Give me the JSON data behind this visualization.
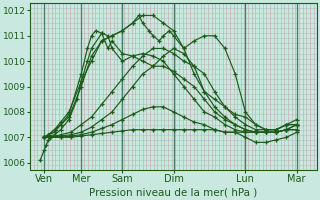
{
  "xlabel": "Pression niveau de la mer( hPa )",
  "bg_color": "#c8e8e0",
  "line_color": "#1a5c1a",
  "grid_color_v": "#b8c8c0",
  "grid_color_v2": "#c0a8a8",
  "grid_color_h": "#a8c8b8",
  "ylim": [
    1005.7,
    1012.3
  ],
  "xlim": [
    0,
    14
  ],
  "yticks": [
    1006,
    1007,
    1008,
    1009,
    1010,
    1011,
    1012
  ],
  "xtick_positions": [
    0.7,
    2.5,
    4.5,
    7.0,
    10.5,
    13.0
  ],
  "xtick_labels": [
    "Ven",
    "Mer",
    "Sam",
    "Dim",
    "Lun",
    "Mar"
  ],
  "day_vlines": [
    0.7,
    2.5,
    4.5,
    7.0,
    10.5,
    13.0
  ],
  "lines": [
    {
      "x": [
        0.7,
        0.9,
        1.2,
        1.5,
        1.9,
        2.5,
        3.0,
        3.5,
        4.0,
        4.5,
        5.0,
        5.3,
        5.5,
        5.8,
        6.0,
        6.3,
        6.5,
        6.8,
        7.0,
        7.5,
        8.0,
        8.5,
        9.0,
        9.5,
        10.0,
        10.5,
        11.0,
        11.5,
        12.0,
        12.5,
        13.0
      ],
      "y": [
        1007.0,
        1007.1,
        1007.3,
        1007.6,
        1008.0,
        1009.2,
        1010.0,
        1010.8,
        1011.0,
        1011.2,
        1011.5,
        1011.8,
        1011.5,
        1011.2,
        1011.0,
        1010.8,
        1011.0,
        1011.2,
        1011.0,
        1010.5,
        1010.8,
        1011.0,
        1011.0,
        1010.5,
        1009.5,
        1008.0,
        1007.5,
        1007.3,
        1007.3,
        1007.5,
        1007.5
      ]
    },
    {
      "x": [
        0.7,
        0.9,
        1.2,
        1.5,
        1.9,
        2.5,
        3.0,
        3.5,
        4.0,
        4.5,
        5.0,
        5.5,
        6.0,
        6.5,
        7.0,
        7.5,
        8.0,
        8.5,
        9.0,
        9.5,
        10.0,
        10.5,
        11.0,
        11.5,
        12.0,
        12.5,
        13.0
      ],
      "y": [
        1007.0,
        1007.1,
        1007.3,
        1007.5,
        1007.8,
        1009.0,
        1010.2,
        1010.8,
        1011.0,
        1011.2,
        1011.5,
        1011.8,
        1011.8,
        1011.5,
        1011.2,
        1010.5,
        1009.5,
        1008.8,
        1008.5,
        1008.2,
        1007.9,
        1007.8,
        1007.5,
        1007.3,
        1007.3,
        1007.5,
        1007.5
      ]
    },
    {
      "x": [
        0.7,
        0.9,
        1.2,
        1.5,
        1.9,
        2.5,
        2.8,
        3.0,
        3.2,
        3.5,
        3.8,
        4.0,
        4.5,
        5.0,
        5.5,
        6.0,
        6.5,
        7.0,
        7.5,
        8.0,
        8.5,
        9.0,
        9.5,
        10.0,
        10.5,
        11.0,
        11.5,
        12.0,
        12.5,
        13.0
      ],
      "y": [
        1007.0,
        1007.1,
        1007.2,
        1007.5,
        1007.9,
        1009.5,
        1010.5,
        1011.0,
        1011.2,
        1011.1,
        1010.5,
        1010.8,
        1010.3,
        1010.2,
        1010.0,
        1009.8,
        1010.2,
        1010.5,
        1010.3,
        1009.8,
        1008.8,
        1008.2,
        1007.8,
        1007.5,
        1007.3,
        1007.2,
        1007.2,
        1007.2,
        1007.3,
        1007.3
      ]
    },
    {
      "x": [
        0.7,
        0.9,
        1.2,
        1.5,
        1.9,
        2.3,
        2.5,
        2.8,
        3.0,
        3.5,
        3.8,
        4.0,
        4.5,
        5.0,
        5.5,
        6.0,
        6.5,
        7.0,
        7.5,
        8.0,
        8.5,
        9.0,
        9.5,
        10.0,
        10.5,
        11.0,
        11.5,
        12.0,
        12.5,
        13.0
      ],
      "y": [
        1007.0,
        1007.05,
        1007.1,
        1007.3,
        1007.7,
        1008.5,
        1009.2,
        1010.0,
        1010.5,
        1011.1,
        1011.0,
        1010.5,
        1010.0,
        1010.2,
        1010.3,
        1010.2,
        1010.0,
        1009.5,
        1009.0,
        1008.5,
        1008.0,
        1007.8,
        1007.5,
        1007.3,
        1007.2,
        1007.2,
        1007.2,
        1007.2,
        1007.3,
        1007.3
      ]
    },
    {
      "x": [
        0.7,
        1.0,
        1.5,
        2.0,
        2.5,
        3.0,
        3.5,
        4.0,
        4.5,
        5.0,
        5.5,
        6.0,
        6.5,
        7.0,
        7.5,
        8.0,
        8.5,
        9.0,
        9.5,
        10.0,
        10.5,
        11.0,
        11.5,
        12.0,
        12.5,
        13.0
      ],
      "y": [
        1007.0,
        1007.0,
        1007.1,
        1007.2,
        1007.5,
        1007.8,
        1008.3,
        1008.8,
        1009.3,
        1009.8,
        1010.2,
        1010.5,
        1010.5,
        1010.3,
        1010.0,
        1009.8,
        1009.5,
        1008.8,
        1008.2,
        1007.8,
        1007.5,
        1007.3,
        1007.3,
        1007.3,
        1007.5,
        1007.7
      ]
    },
    {
      "x": [
        0.7,
        1.0,
        1.5,
        2.0,
        2.5,
        3.0,
        3.5,
        4.0,
        4.5,
        5.0,
        5.5,
        6.0,
        6.5,
        7.0,
        7.5,
        8.0,
        8.5,
        9.0,
        9.5,
        10.0,
        10.5,
        11.0,
        11.5,
        12.0,
        12.5,
        13.0
      ],
      "y": [
        1007.0,
        1007.0,
        1007.05,
        1007.1,
        1007.2,
        1007.4,
        1007.7,
        1008.0,
        1008.5,
        1009.0,
        1009.5,
        1009.8,
        1009.8,
        1009.6,
        1009.3,
        1009.0,
        1008.5,
        1008.0,
        1007.7,
        1007.5,
        1007.3,
        1007.2,
        1007.2,
        1007.2,
        1007.3,
        1007.5
      ]
    },
    {
      "x": [
        0.7,
        1.0,
        1.5,
        2.0,
        2.5,
        3.0,
        3.5,
        4.0,
        4.5,
        5.0,
        5.5,
        6.0,
        6.5,
        7.0,
        7.5,
        8.0,
        8.5,
        9.0,
        9.5,
        10.0,
        10.5,
        11.0,
        11.5,
        12.0,
        12.5,
        13.0
      ],
      "y": [
        1007.0,
        1007.0,
        1007.0,
        1007.05,
        1007.1,
        1007.2,
        1007.35,
        1007.5,
        1007.7,
        1007.9,
        1008.1,
        1008.2,
        1008.2,
        1008.0,
        1007.8,
        1007.6,
        1007.5,
        1007.3,
        1007.2,
        1007.2,
        1007.2,
        1007.2,
        1007.2,
        1007.2,
        1007.3,
        1007.5
      ]
    },
    {
      "x": [
        0.7,
        1.0,
        1.5,
        2.0,
        2.5,
        3.0,
        3.5,
        4.0,
        4.5,
        5.0,
        5.5,
        6.0,
        6.5,
        7.0,
        7.5,
        8.0,
        8.5,
        9.0,
        9.5,
        10.0,
        10.5,
        11.0,
        11.5,
        12.0,
        12.5,
        13.0
      ],
      "y": [
        1007.0,
        1007.0,
        1007.0,
        1007.0,
        1007.05,
        1007.1,
        1007.15,
        1007.2,
        1007.25,
        1007.3,
        1007.3,
        1007.3,
        1007.3,
        1007.3,
        1007.3,
        1007.3,
        1007.3,
        1007.3,
        1007.2,
        1007.2,
        1007.0,
        1006.8,
        1006.8,
        1006.9,
        1007.0,
        1007.2
      ]
    },
    {
      "x": [
        0.5,
        0.7,
        0.8,
        0.9,
        1.0
      ],
      "y": [
        1006.1,
        1006.5,
        1006.7,
        1006.9,
        1007.0
      ]
    }
  ]
}
